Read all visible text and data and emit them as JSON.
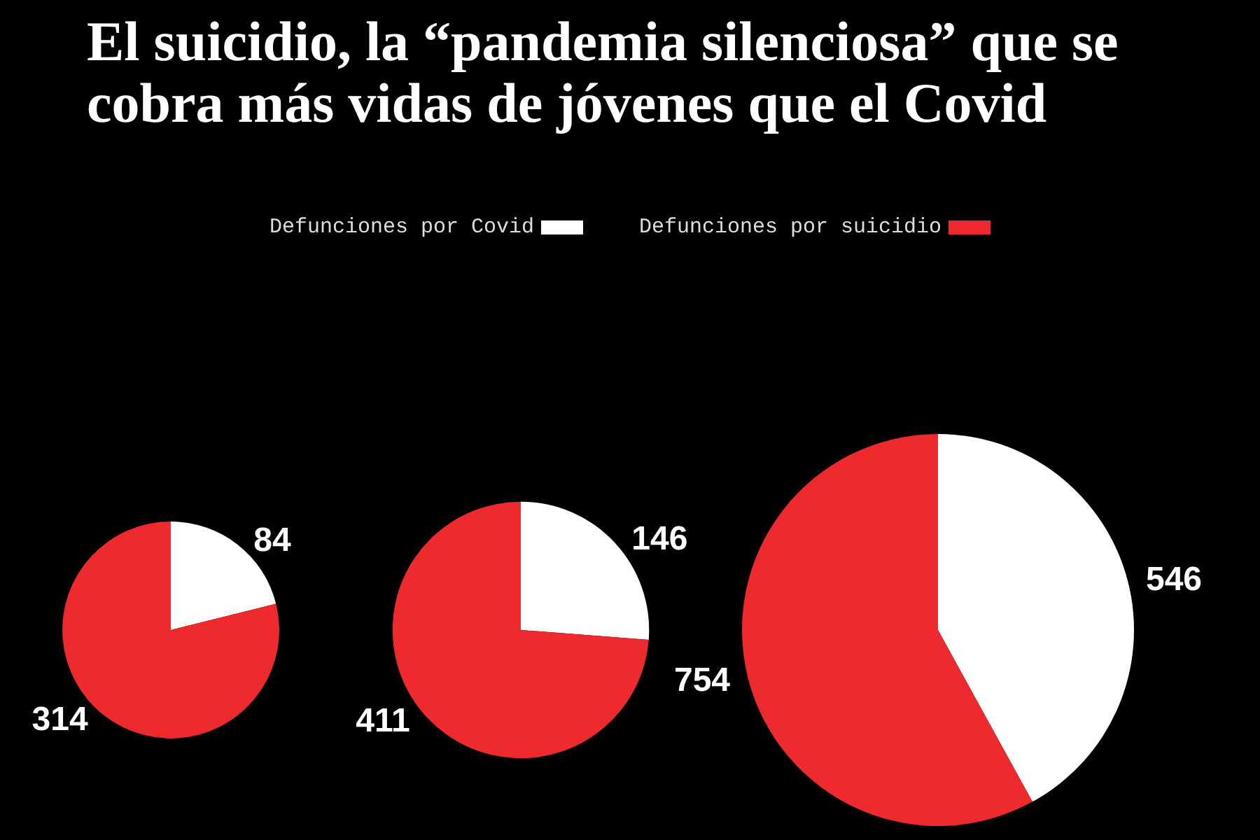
{
  "chart_data": [
    {
      "type": "pie",
      "title": "El suicidio, la “pandemia silenciosa” que se cobra más vidas de jóvenes que el Covid",
      "categories": [
        "Defunciones por Covid",
        "Defunciones por suicidio"
      ],
      "values": [
        84,
        314
      ],
      "colors": [
        "#ffffff",
        "#ee2a2e"
      ],
      "data_labels": true,
      "legend": "top"
    },
    {
      "type": "pie",
      "categories": [
        null,
        null
      ],
      "values": [
        146,
        411
      ],
      "colors": [
        "#ffffff",
        "#ee2a2e"
      ],
      "data_labels": true
    },
    {
      "type": "pie",
      "categories": [
        null,
        null
      ],
      "values": [
        546,
        754
      ],
      "colors": [
        "#ffffff",
        "#ee2a2e"
      ],
      "data_labels": true
    }
  ]
}
